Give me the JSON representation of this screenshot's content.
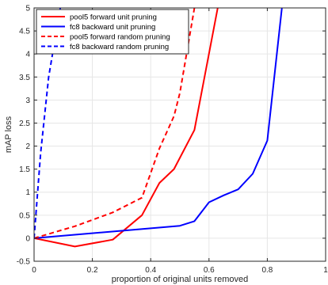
{
  "chart_data": {
    "type": "line",
    "title": "",
    "xlabel": "proportion of original units removed",
    "ylabel": "mAP loss",
    "xlim": [
      0,
      1
    ],
    "ylim": [
      -0.5,
      5
    ],
    "xticks": [
      "0",
      "0.2",
      "0.4",
      "0.6",
      "0.8",
      "1"
    ],
    "yticks": [
      "-0.5",
      "0",
      "0.5",
      "1",
      "1.5",
      "2",
      "2.5",
      "3",
      "3.5",
      "4",
      "4.5",
      "5"
    ],
    "xtick_values": [
      0,
      0.2,
      0.4,
      0.6,
      0.8,
      1
    ],
    "ytick_values": [
      -0.5,
      0,
      0.5,
      1,
      1.5,
      2,
      2.5,
      3,
      3.5,
      4,
      4.5,
      5
    ],
    "grid": true,
    "legend_position": "top-left",
    "series": [
      {
        "name": "pool5 forward unit pruning",
        "color": "#ff0000",
        "dash": "solid",
        "x": [
          0,
          0.14,
          0.27,
          0.37,
          0.43,
          0.48,
          0.55,
          0.63
        ],
        "y": [
          0,
          -0.18,
          -0.03,
          0.5,
          1.2,
          1.5,
          2.35,
          5.0
        ]
      },
      {
        "name": "fc8 backward unit pruning",
        "color": "#0000ff",
        "dash": "solid",
        "x": [
          0,
          0.5,
          0.55,
          0.6,
          0.65,
          0.7,
          0.75,
          0.8,
          0.85
        ],
        "y": [
          0,
          0.27,
          0.37,
          0.78,
          0.93,
          1.06,
          1.4,
          2.12,
          5.0
        ]
      },
      {
        "name": "pool5 forward random pruning",
        "color": "#ff0000",
        "dash": "dashed",
        "x": [
          0,
          0.14,
          0.27,
          0.37,
          0.43,
          0.48,
          0.5,
          0.55
        ],
        "y": [
          0,
          0.26,
          0.56,
          0.88,
          1.95,
          2.65,
          3.15,
          5.0
        ]
      },
      {
        "name": "fc8 backward random pruning",
        "color": "#0000ff",
        "dash": "dashed",
        "x": [
          0,
          0.0225,
          0.05,
          0.09
        ],
        "y": [
          0,
          1.85,
          3.5,
          5.0
        ]
      }
    ]
  }
}
